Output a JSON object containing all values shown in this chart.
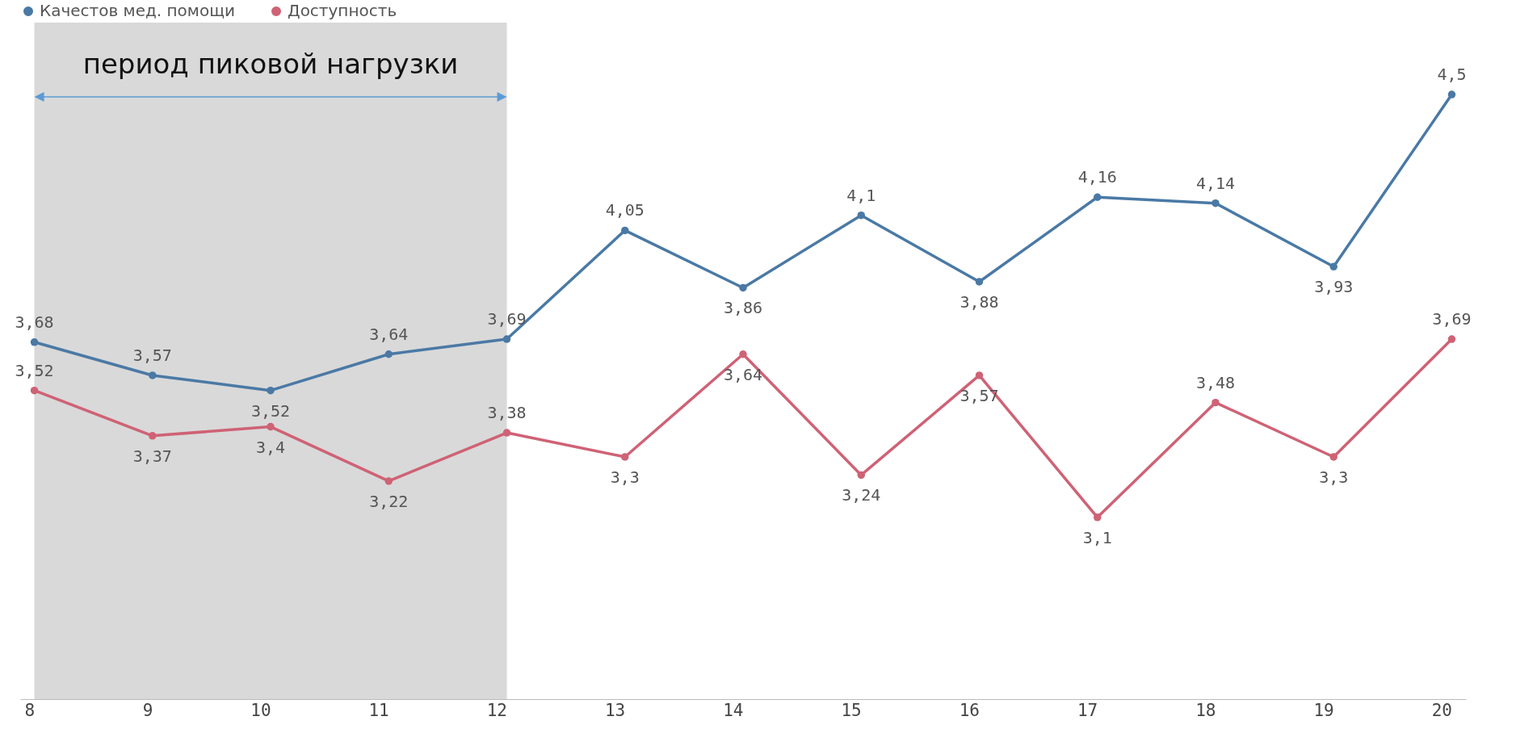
{
  "chart_data": {
    "type": "line",
    "categories": [
      "8",
      "9",
      "10",
      "11",
      "12",
      "13",
      "14",
      "15",
      "16",
      "17",
      "18",
      "19",
      "20"
    ],
    "series": [
      {
        "name": "Качестов мед. помощи",
        "color": "#4a79a5",
        "values": [
          3.68,
          3.57,
          3.52,
          3.64,
          3.69,
          4.05,
          3.86,
          4.1,
          3.88,
          4.16,
          4.14,
          3.93,
          4.5
        ],
        "value_labels": [
          "3,68",
          "3,57",
          "3,52",
          "3,64",
          "3,69",
          "4,05",
          "3,86",
          "4,1",
          "3,88",
          "4,16",
          "4,14",
          "3,93",
          "4,5"
        ]
      },
      {
        "name": "Доступность",
        "color": "#cf6275",
        "values": [
          3.52,
          3.37,
          3.4,
          3.22,
          3.38,
          3.3,
          3.64,
          3.24,
          3.57,
          3.1,
          3.48,
          3.3,
          3.69
        ],
        "value_labels": [
          "3,52",
          "3,37",
          "3,4",
          "3,22",
          "3,38",
          "3,3",
          "3,64",
          "3,24",
          "3,57",
          "3,1",
          "3,48",
          "3,3",
          "3,69"
        ]
      }
    ],
    "bands": [
      {
        "axis": "x",
        "from": "8",
        "to": "12",
        "label": "период пиковой нагрузки",
        "color": "#d9d9d9"
      }
    ],
    "marker": "circle",
    "legend": "top left",
    "grid": false
  }
}
